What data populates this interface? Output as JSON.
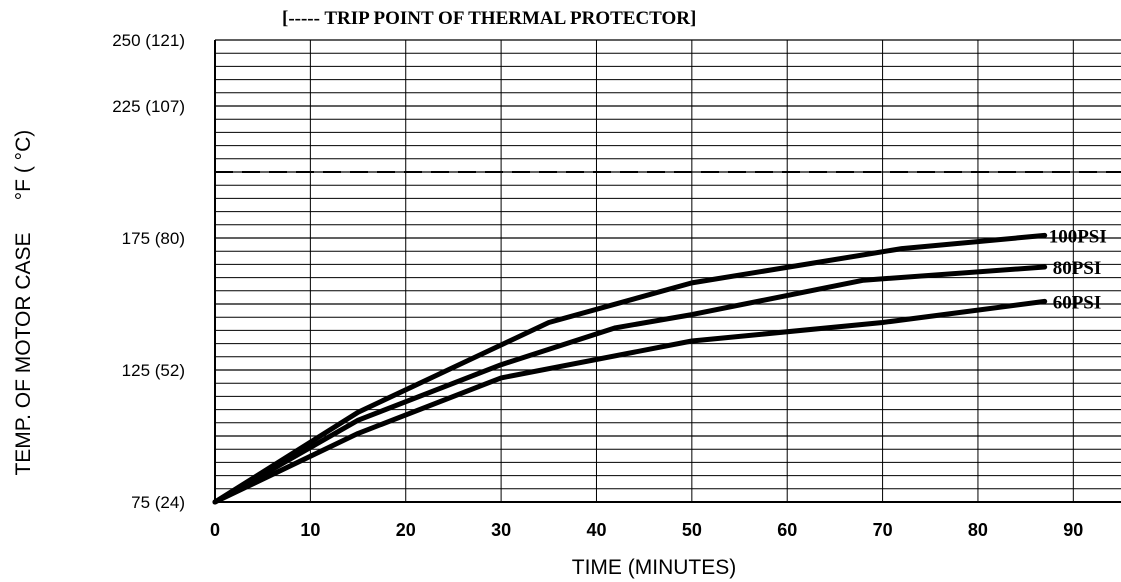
{
  "chart_data": {
    "type": "line",
    "title": "[----- TRIP POINT OF THERMAL PROTECTOR]",
    "xlabel": "TIME (MINUTES)",
    "ylabel_main": "TEMP. OF MOTOR CASE",
    "ylabel_unit": "°F ( °C)",
    "xlim": [
      0,
      95
    ],
    "ylim": [
      75,
      250
    ],
    "x_ticks": [
      0,
      10,
      20,
      30,
      40,
      50,
      60,
      70,
      80,
      90
    ],
    "y_ticks": [
      {
        "value": 250,
        "label": "250 (121)"
      },
      {
        "value": 225,
        "label": "225 (107)"
      },
      {
        "value": 175,
        "label": "175  (80)"
      },
      {
        "value": 125,
        "label": "125  (52)"
      },
      {
        "value": 75,
        "label": "75  (24)"
      }
    ],
    "grid": true,
    "trip_point": 200,
    "series": [
      {
        "name": "100PSI",
        "x": [
          0,
          15,
          25,
          35,
          50,
          72,
          87
        ],
        "y": [
          75,
          109,
          126,
          143,
          158,
          171,
          176
        ]
      },
      {
        "name": "80PSI",
        "x": [
          0,
          15,
          30,
          42,
          50,
          68,
          87
        ],
        "y": [
          75,
          106,
          127,
          141,
          146,
          159,
          164
        ]
      },
      {
        "name": "60PSI",
        "x": [
          0,
          15,
          30,
          50,
          70,
          87
        ],
        "y": [
          75,
          101,
          122,
          136,
          143,
          151
        ]
      }
    ]
  }
}
